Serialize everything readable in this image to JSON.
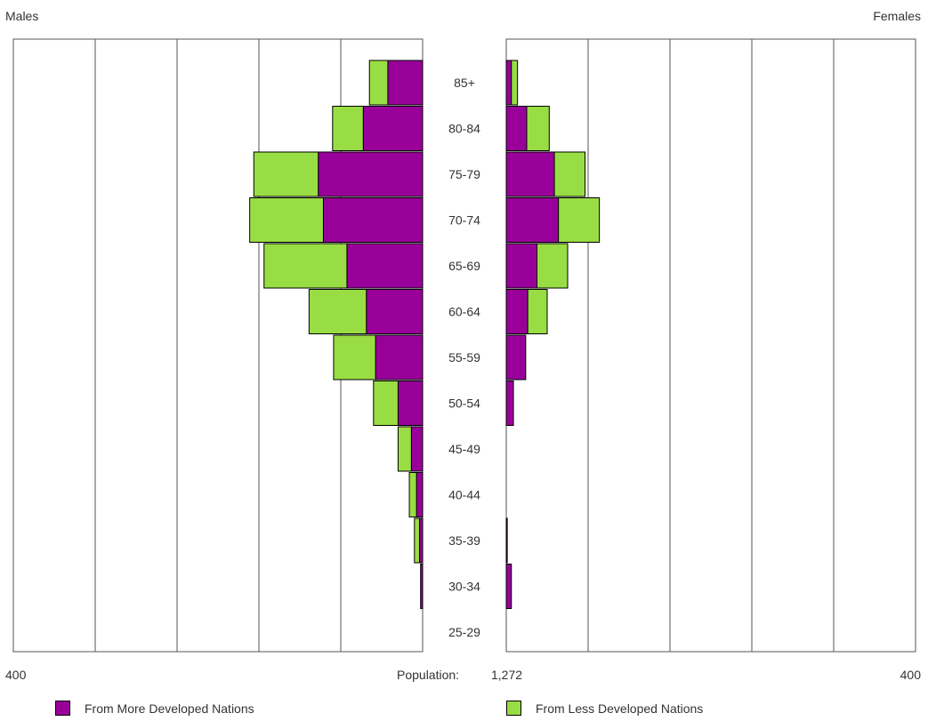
{
  "header": {
    "title": "",
    "left_label": "Males",
    "right_label": "Females"
  },
  "axis": {
    "left_max_label": "400",
    "right_max_label": "400",
    "population_label": "Population:",
    "population_value": "1,272"
  },
  "legend": {
    "more_developed": "From More Developed Nations",
    "less_developed": "From Less Developed Nations"
  },
  "colors": {
    "more_developed": "#990099",
    "less_developed": "#99dd44",
    "grid": "#555555"
  },
  "chart_data": {
    "type": "bar",
    "orientation": "horizontal-pyramid",
    "categories": [
      "85+",
      "80-84",
      "75-79",
      "70-74",
      "65-69",
      "60-64",
      "55-59",
      "50-54",
      "45-49",
      "40-44",
      "35-39",
      "30-34",
      "25-29"
    ],
    "xlim": [
      0,
      400
    ],
    "grid": true,
    "legend_position": "bottom",
    "males": {
      "series": [
        {
          "name": "From More Developed Nations",
          "values": [
            34,
            58,
            102,
            97,
            74,
            55,
            46,
            24,
            11,
            6,
            3,
            2,
            0
          ]
        },
        {
          "name": "From Less Developed Nations",
          "values": [
            18,
            30,
            63,
            72,
            81,
            56,
            41,
            24,
            13,
            7,
            5,
            0,
            0
          ]
        }
      ]
    },
    "females": {
      "series": [
        {
          "name": "From More Developed Nations",
          "values": [
            5,
            20,
            47,
            51,
            30,
            21,
            19,
            7,
            0,
            0,
            1,
            5,
            0
          ]
        },
        {
          "name": "From Less Developed Nations",
          "values": [
            6,
            22,
            30,
            40,
            30,
            19,
            0,
            0,
            0,
            0,
            0,
            0,
            0
          ]
        }
      ]
    }
  }
}
